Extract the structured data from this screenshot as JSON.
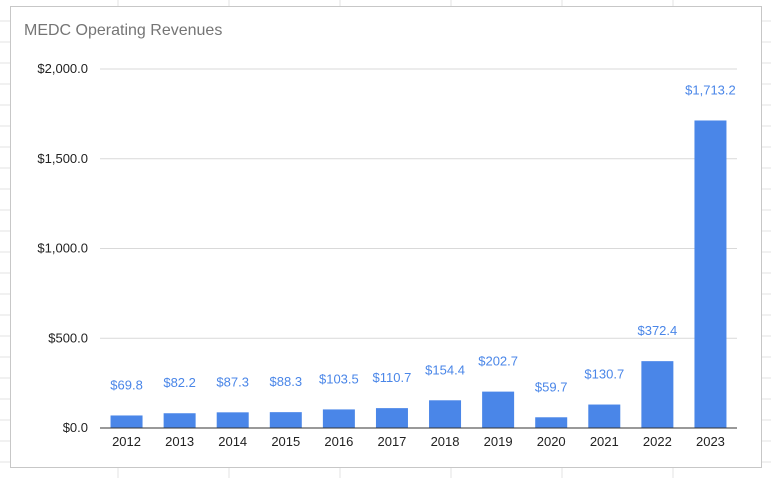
{
  "chart_data": {
    "type": "bar",
    "title": "MEDC Operating Revenues",
    "xlabel": "",
    "ylabel": "",
    "categories": [
      "2012",
      "2013",
      "2014",
      "2015",
      "2016",
      "2017",
      "2018",
      "2019",
      "2020",
      "2021",
      "2022",
      "2023"
    ],
    "values": [
      69.8,
      82.2,
      87.3,
      88.3,
      103.5,
      110.7,
      154.4,
      202.7,
      59.7,
      130.7,
      372.4,
      1713.2
    ],
    "data_labels": [
      "$69.8",
      "$82.2",
      "$87.3",
      "$88.3",
      "$103.5",
      "$110.7",
      "$154.4",
      "$202.7",
      "$59.7",
      "$130.7",
      "$372.4",
      "$1,713.2"
    ],
    "ylim": [
      0,
      2000
    ],
    "yticks": [
      0,
      500,
      1000,
      1500,
      2000
    ],
    "ytick_labels": [
      "$0.0",
      "$500.0",
      "$1,000.0",
      "$1,500.0",
      "$2,000.0"
    ],
    "grid": true,
    "legend": "none",
    "bar_color": "#4a86e8",
    "label_color": "#4a86e8"
  }
}
